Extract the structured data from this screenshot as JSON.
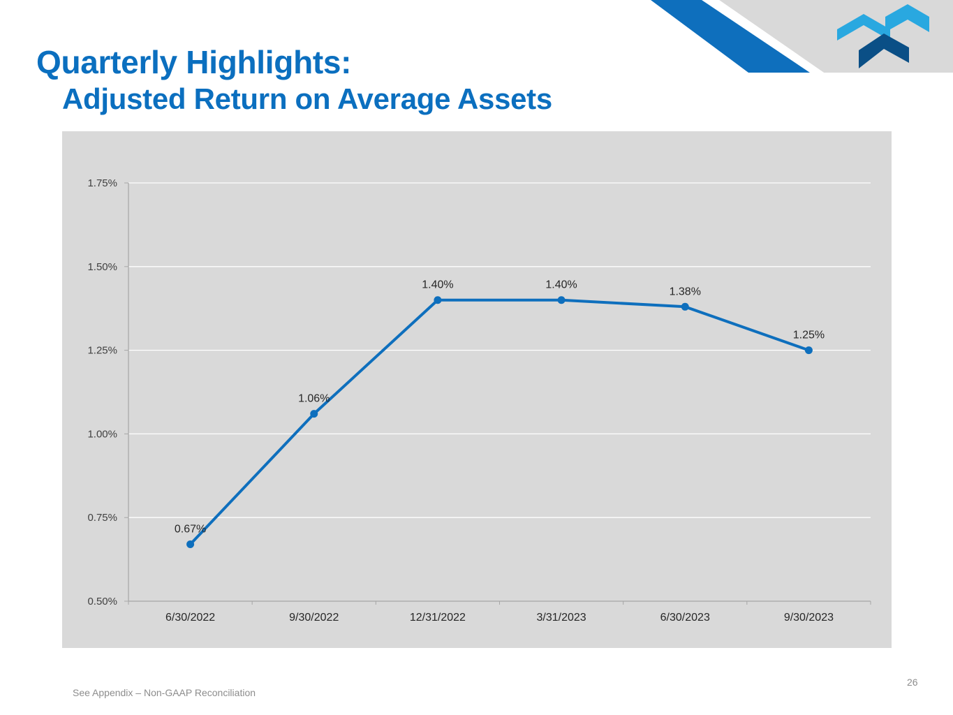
{
  "slide": {
    "title": "Quarterly Highlights:",
    "subtitle": "Adjusted Return on Average Assets",
    "footnote": "See Appendix – Non-GAAP Reconciliation",
    "page_number": "26"
  },
  "colors": {
    "accent": "#0b6fbf",
    "line": "#0e6fbd",
    "light_blue": "#29a8e0",
    "dark_blue": "#0a4f86",
    "panel": "#d9d9d9"
  },
  "logo": {
    "icon": "company-logo-icon"
  },
  "chart_data": {
    "type": "line",
    "title": "",
    "xlabel": "",
    "ylabel": "",
    "categories": [
      "6/30/2022",
      "9/30/2022",
      "12/31/2022",
      "3/31/2023",
      "6/30/2023",
      "9/30/2023"
    ],
    "values": [
      0.67,
      1.06,
      1.4,
      1.4,
      1.38,
      1.25
    ],
    "labels": [
      "0.67%",
      "1.06%",
      "1.40%",
      "1.40%",
      "1.38%",
      "1.25%"
    ],
    "ylim": [
      0.5,
      1.75
    ],
    "yticks": [
      0.5,
      0.75,
      1.0,
      1.25,
      1.5,
      1.75
    ],
    "ytick_labels": [
      "0.50%",
      "0.75%",
      "1.00%",
      "1.25%",
      "1.50%",
      "1.75%"
    ],
    "grid": true,
    "legend": "none"
  }
}
